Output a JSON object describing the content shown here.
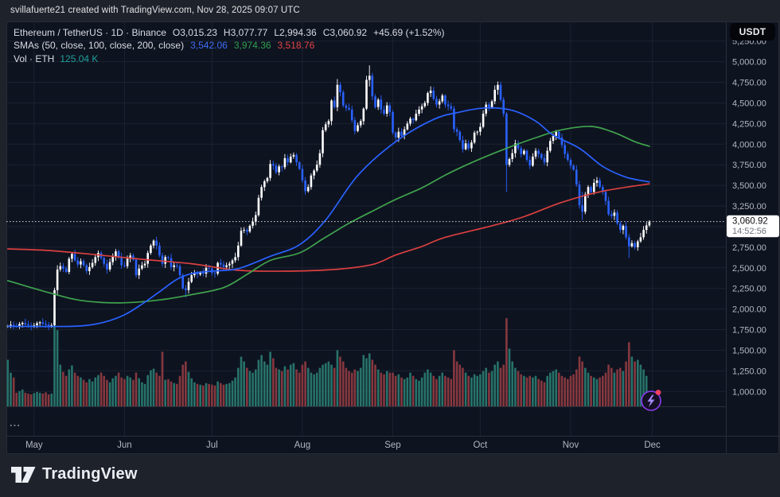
{
  "top_bar": {
    "attribution": "svillafuerte21 created with TradingView.com, Nov 28, 2025 09:07 UTC"
  },
  "legend": {
    "title": "Ethereum / TetherUS · 1D · Binance",
    "open": "O3,015.23",
    "high": "H3,077.77",
    "low": "L2,994.36",
    "close": "C3,060.92",
    "change": "+45.69 (+1.52%)",
    "sma_label": "SMAs (50, close, 100, close, 200, close)",
    "sma50_value": "3,542.06",
    "sma100_value": "3,974.36",
    "sma200_value": "3,518.76",
    "vol_label": "Vol · ETH",
    "vol_value": "125.04 K"
  },
  "price_axis": {
    "currency_button": "USDT",
    "price_label": "3,060.92",
    "countdown": "14:52:56"
  },
  "footer": {
    "brand": "TradingView"
  },
  "more_indicator": "...",
  "colors": {
    "bg_chart": "#0e1320",
    "bg_outer": "#1e222a",
    "up": "#ffffff",
    "down": "#2962ff",
    "sma50": "#2962ff",
    "sma100": "#3fa34d",
    "sma200": "#d94040",
    "vol_up": "#27736a",
    "vol_down": "#86383f",
    "price_line": "#d7dbe2",
    "grid": "#1b2230",
    "separator": "#2a2e39",
    "axis_text": "#b2b6c0",
    "label_bg": "#ffffff",
    "label_text": "#0c0d10",
    "countdown_text": "#70747f",
    "badge_ring": "#8b3df0",
    "badge_bolt": "#a78bfa",
    "badge_dot": "#f43f5e",
    "more_text": "#7a7e87"
  },
  "chart_data": {
    "type": "candlestick",
    "title": "Ethereum / TetherUS, 1D, Binance",
    "interval": "1D",
    "start_date": "2025-04-22",
    "current_price": 3060.92,
    "current_volume_k": 125.04,
    "last_candle": {
      "open": 3015.23,
      "high": 3077.77,
      "low": 2994.36,
      "close": 3060.92
    },
    "y_axis": {
      "ticks": [
        5250,
        5000,
        4750,
        4500,
        4250,
        4000,
        3750,
        3500,
        3250,
        3000,
        2750,
        2500,
        2250,
        2000,
        1750,
        1500,
        1250,
        1000
      ]
    },
    "x_axis": {
      "labels": [
        "May",
        "Jun",
        "Jul",
        "Aug",
        "Sep",
        "Oct",
        "Nov",
        "Dec"
      ],
      "label_days": [
        9,
        40,
        70,
        101,
        132,
        162,
        193,
        221
      ]
    },
    "closes": [
      1795,
      1808,
      1798,
      1788,
      1818,
      1833,
      1815,
      1802,
      1790,
      1803,
      1828,
      1840,
      1822,
      1810,
      1795,
      1805,
      2230,
      2480,
      2520,
      2490,
      2450,
      2610,
      2670,
      2590,
      2540,
      2580,
      2530,
      2460,
      2510,
      2560,
      2630,
      2680,
      2620,
      2550,
      2480,
      2570,
      2640,
      2700,
      2630,
      2530,
      2520,
      2610,
      2650,
      2600,
      2410,
      2490,
      2530,
      2550,
      2680,
      2770,
      2830,
      2770,
      2650,
      2550,
      2630,
      2620,
      2510,
      2530,
      2520,
      2410,
      2250,
      2230,
      2330,
      2410,
      2440,
      2420,
      2440,
      2430,
      2500,
      2490,
      2440,
      2430,
      2560,
      2540,
      2510,
      2530,
      2550,
      2590,
      2630,
      2770,
      2950,
      2960,
      2940,
      3010,
      3060,
      3140,
      3350,
      3480,
      3550,
      3590,
      3760,
      3740,
      3660,
      3730,
      3720,
      3830,
      3780,
      3850,
      3870,
      3780,
      3700,
      3560,
      3430,
      3480,
      3620,
      3680,
      3750,
      3890,
      4170,
      4240,
      4280,
      4530,
      4450,
      4720,
      4630,
      4470,
      4440,
      4420,
      4290,
      4160,
      4230,
      4280,
      4430,
      4780,
      4830,
      4580,
      4450,
      4540,
      4420,
      4370,
      4470,
      4390,
      4140,
      4080,
      4150,
      4100,
      4180,
      4250,
      4310,
      4290,
      4370,
      4420,
      4460,
      4500,
      4620,
      4650,
      4550,
      4480,
      4520,
      4590,
      4480,
      4460,
      4430,
      4180,
      4150,
      4050,
      3940,
      4010,
      3950,
      4020,
      4140,
      4150,
      4210,
      4370,
      4480,
      4450,
      4520,
      4660,
      4720,
      4540,
      4370,
      3750,
      3820,
      3890,
      4010,
      3950,
      3880,
      3920,
      3810,
      3740,
      3850,
      3920,
      3880,
      3830,
      3780,
      3920,
      4040,
      4100,
      4150,
      4080,
      3990,
      3880,
      3810,
      3740,
      3690,
      3510,
      3260,
      3180,
      3390,
      3480,
      3420,
      3530,
      3560,
      3480,
      3420,
      3310,
      3150,
      3130,
      3170,
      3040,
      2960,
      3010,
      2870,
      2760,
      2800,
      2750,
      2820,
      2870,
      2960,
      3015,
      3060.92
    ],
    "volumes_k": [
      580,
      420,
      360,
      170,
      190,
      210,
      170,
      160,
      150,
      165,
      180,
      170,
      160,
      175,
      150,
      160,
      1200,
      950,
      520,
      430,
      380,
      460,
      510,
      420,
      380,
      360,
      330,
      300,
      340,
      310,
      360,
      390,
      420,
      380,
      330,
      300,
      350,
      380,
      420,
      360,
      340,
      380,
      360,
      330,
      420,
      350,
      300,
      280,
      390,
      450,
      470,
      420,
      380,
      680,
      330,
      340,
      310,
      290,
      280,
      380,
      520,
      560,
      430,
      350,
      300,
      280,
      270,
      260,
      290,
      280,
      270,
      260,
      310,
      290,
      270,
      280,
      290,
      320,
      360,
      480,
      620,
      560,
      480,
      440,
      420,
      460,
      580,
      640,
      560,
      520,
      680,
      600,
      480,
      460,
      440,
      500,
      460,
      520,
      540,
      460,
      420,
      520,
      560,
      480,
      420,
      400,
      420,
      480,
      520,
      540,
      560,
      520,
      480,
      700,
      620,
      560,
      480,
      440,
      420,
      460,
      440,
      480,
      640,
      600,
      660,
      580,
      520,
      460,
      420,
      400,
      440,
      420,
      420,
      380,
      400,
      360,
      340,
      360,
      420,
      380,
      340,
      320,
      360,
      420,
      460,
      420,
      380,
      340,
      380,
      420,
      380,
      360,
      340,
      700,
      560,
      520,
      480,
      420,
      380,
      360,
      400,
      380,
      400,
      440,
      480,
      420,
      440,
      520,
      560,
      480,
      520,
      1100,
      720,
      560,
      480,
      440,
      400,
      380,
      360,
      380,
      360,
      380,
      340,
      320,
      300,
      380,
      420,
      440,
      460,
      420,
      380,
      360,
      340,
      380,
      400,
      460,
      620,
      560,
      480,
      420,
      380,
      360,
      340,
      360,
      380,
      420,
      520,
      480,
      420,
      460,
      480,
      440,
      560,
      800,
      620,
      560,
      580,
      520,
      460,
      380,
      125
    ],
    "volume_max_k": 1200,
    "wick_overrides": {
      "16": [
        2260,
        1780
      ],
      "61": [
        2290,
        2140
      ],
      "113": [
        4790,
        4400
      ],
      "124": [
        4956,
        4700
      ],
      "168": [
        4760,
        4600
      ],
      "171": [
        4390,
        3420
      ],
      "197": [
        3420,
        3080
      ],
      "213": [
        2910,
        2620
      ],
      "220": [
        3077.77,
        2994.36
      ]
    },
    "sma50": [
      [
        0,
        1790
      ],
      [
        14,
        1788
      ],
      [
        25,
        1795
      ],
      [
        33,
        1840
      ],
      [
        40,
        1930
      ],
      [
        46,
        2060
      ],
      [
        52,
        2210
      ],
      [
        58,
        2360
      ],
      [
        63,
        2430
      ],
      [
        70,
        2460
      ],
      [
        79,
        2490
      ],
      [
        90,
        2640
      ],
      [
        100,
        2780
      ],
      [
        109,
        3080
      ],
      [
        120,
        3620
      ],
      [
        133,
        4030
      ],
      [
        146,
        4300
      ],
      [
        155,
        4390
      ],
      [
        164,
        4440
      ],
      [
        173,
        4410
      ],
      [
        181,
        4280
      ],
      [
        187,
        4110
      ],
      [
        196,
        3950
      ],
      [
        204,
        3730
      ],
      [
        212,
        3600
      ],
      [
        220,
        3542
      ]
    ],
    "sma100": [
      [
        0,
        2345
      ],
      [
        14,
        2200
      ],
      [
        25,
        2105
      ],
      [
        38,
        2075
      ],
      [
        52,
        2110
      ],
      [
        63,
        2175
      ],
      [
        74,
        2260
      ],
      [
        82,
        2420
      ],
      [
        90,
        2590
      ],
      [
        100,
        2680
      ],
      [
        108,
        2850
      ],
      [
        117,
        3040
      ],
      [
        126,
        3205
      ],
      [
        133,
        3330
      ],
      [
        142,
        3470
      ],
      [
        150,
        3625
      ],
      [
        158,
        3760
      ],
      [
        166,
        3880
      ],
      [
        174,
        3990
      ],
      [
        182,
        4090
      ],
      [
        190,
        4175
      ],
      [
        200,
        4215
      ],
      [
        208,
        4140
      ],
      [
        215,
        4030
      ],
      [
        220,
        3974
      ]
    ],
    "sma200": [
      [
        0,
        2730
      ],
      [
        14,
        2710
      ],
      [
        30,
        2660
      ],
      [
        47,
        2600
      ],
      [
        63,
        2550
      ],
      [
        79,
        2470
      ],
      [
        95,
        2460
      ],
      [
        112,
        2480
      ],
      [
        125,
        2540
      ],
      [
        133,
        2655
      ],
      [
        142,
        2760
      ],
      [
        150,
        2870
      ],
      [
        166,
        3010
      ],
      [
        177,
        3120
      ],
      [
        190,
        3295
      ],
      [
        204,
        3430
      ],
      [
        220,
        3519
      ]
    ]
  }
}
